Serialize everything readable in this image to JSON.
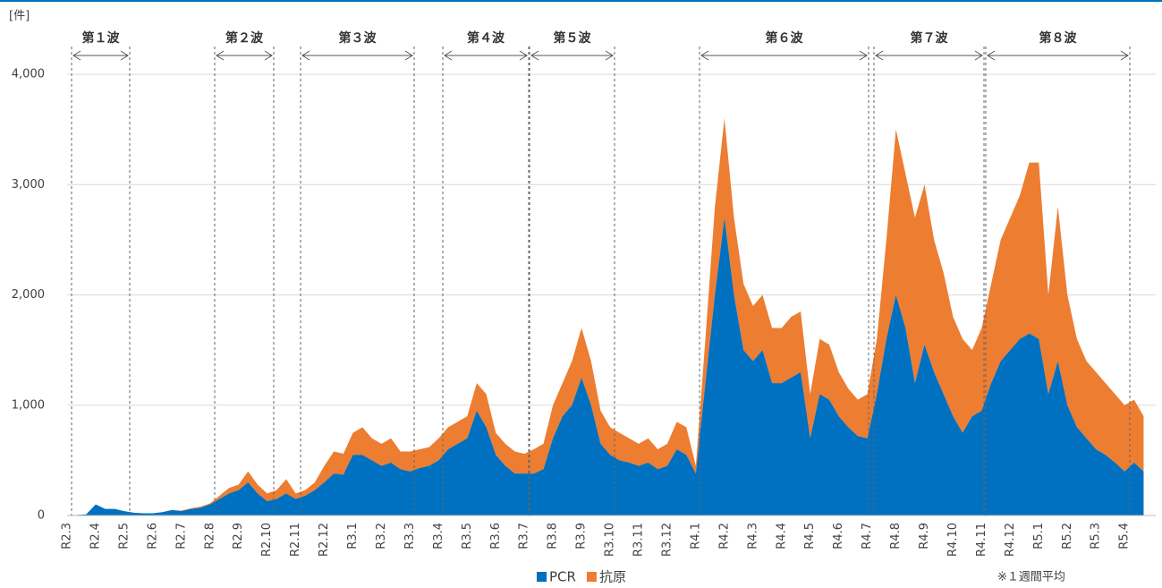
{
  "chart_data": {
    "type": "stacked_area",
    "y_unit": "[件]",
    "note": "※１週間平均",
    "waves": [
      "第１波",
      "第２波",
      "第３波",
      "第４波",
      "第５波",
      "第６波",
      "第７波",
      "第８波"
    ],
    "categories": [
      "R2.3",
      null,
      null,
      "R2.4",
      null,
      null,
      "R2.5",
      null,
      null,
      "R2.6",
      null,
      null,
      "R2.7",
      null,
      null,
      "R2.8",
      null,
      null,
      "R2.9",
      null,
      null,
      "R2.10",
      null,
      null,
      "R2.11",
      null,
      null,
      "R2.12",
      null,
      null,
      "R3.1",
      null,
      null,
      "R3.2",
      null,
      null,
      "R3.3",
      null,
      null,
      "R3.4",
      null,
      null,
      "R3.5",
      null,
      null,
      "R3.6",
      null,
      null,
      "R3.7",
      null,
      null,
      "R3.8",
      null,
      null,
      "R3.9",
      null,
      null,
      "R3.10",
      null,
      null,
      "R3.11",
      null,
      null,
      "R3.12",
      null,
      null,
      "R4.1",
      null,
      null,
      "R4.2",
      null,
      null,
      "R4.3",
      null,
      null,
      "R4.4",
      null,
      null,
      "R4.5",
      null,
      null,
      "R4.6",
      null,
      null,
      "R4.7",
      null,
      null,
      "R4.8",
      null,
      null,
      "R4.9",
      null,
      null,
      "R4.10",
      null,
      null,
      "R4.11",
      null,
      null,
      "R4.12",
      null,
      null,
      "R5.1",
      null,
      null,
      "R5.2",
      null,
      null,
      "R5.3",
      null,
      null,
      "R5.4",
      null,
      null
    ],
    "series": [
      {
        "name": "PCR",
        "color": "#0070c0",
        "values": [
          0,
          5,
          10,
          100,
          60,
          60,
          40,
          25,
          20,
          20,
          30,
          50,
          40,
          60,
          70,
          100,
          150,
          200,
          230,
          300,
          200,
          130,
          150,
          200,
          150,
          180,
          230,
          300,
          380,
          370,
          550,
          550,
          500,
          450,
          480,
          420,
          400,
          430,
          450,
          500,
          600,
          650,
          700,
          950,
          800,
          550,
          450,
          380,
          380,
          380,
          420,
          700,
          900,
          1000,
          1250,
          1000,
          650,
          550,
          500,
          480,
          450,
          480,
          420,
          450,
          600,
          550,
          380,
          1200,
          2000,
          2700,
          2000,
          1500,
          1400,
          1500,
          1200,
          1200,
          1250,
          1300,
          700,
          1100,
          1050,
          900,
          800,
          720,
          700,
          1100,
          1600,
          2000,
          1700,
          1200,
          1550,
          1300,
          1100,
          900,
          750,
          900,
          950,
          1200,
          1400,
          1500,
          1600,
          1650,
          1600,
          1100,
          1400,
          1000,
          800,
          700,
          600,
          550,
          480,
          400,
          480,
          400
        ]
      },
      {
        "name": "抗原",
        "color": "#ed7d31",
        "values": [
          0,
          0,
          0,
          0,
          0,
          0,
          0,
          0,
          0,
          0,
          0,
          0,
          5,
          5,
          10,
          10,
          30,
          50,
          50,
          100,
          80,
          70,
          80,
          130,
          50,
          50,
          70,
          150,
          200,
          190,
          200,
          250,
          200,
          200,
          220,
          160,
          180,
          170,
          170,
          200,
          200,
          200,
          200,
          250,
          300,
          200,
          200,
          200,
          180,
          220,
          230,
          300,
          300,
          400,
          450,
          400,
          300,
          250,
          250,
          220,
          200,
          220,
          180,
          200,
          250,
          250,
          70,
          400,
          800,
          900,
          700,
          600,
          500,
          500,
          500,
          500,
          550,
          550,
          400,
          500,
          500,
          400,
          350,
          330,
          400,
          500,
          900,
          1500,
          1400,
          1500,
          1450,
          1200,
          1100,
          900,
          850,
          600,
          750,
          900,
          1100,
          1200,
          1300,
          1550,
          1600,
          900,
          1400,
          1000,
          800,
          700,
          700,
          650,
          620,
          600,
          570,
          500
        ]
      }
    ],
    "ylim": [
      0,
      4000
    ],
    "yticks": [
      0,
      {
        "value": 1000,
        "label": "1,000"
      },
      {
        "value": 2000,
        "label": "2,000"
      },
      {
        "value": 3000,
        "label": "3,000"
      },
      {
        "value": 4000,
        "label": "4,000"
      }
    ],
    "grid": true
  }
}
